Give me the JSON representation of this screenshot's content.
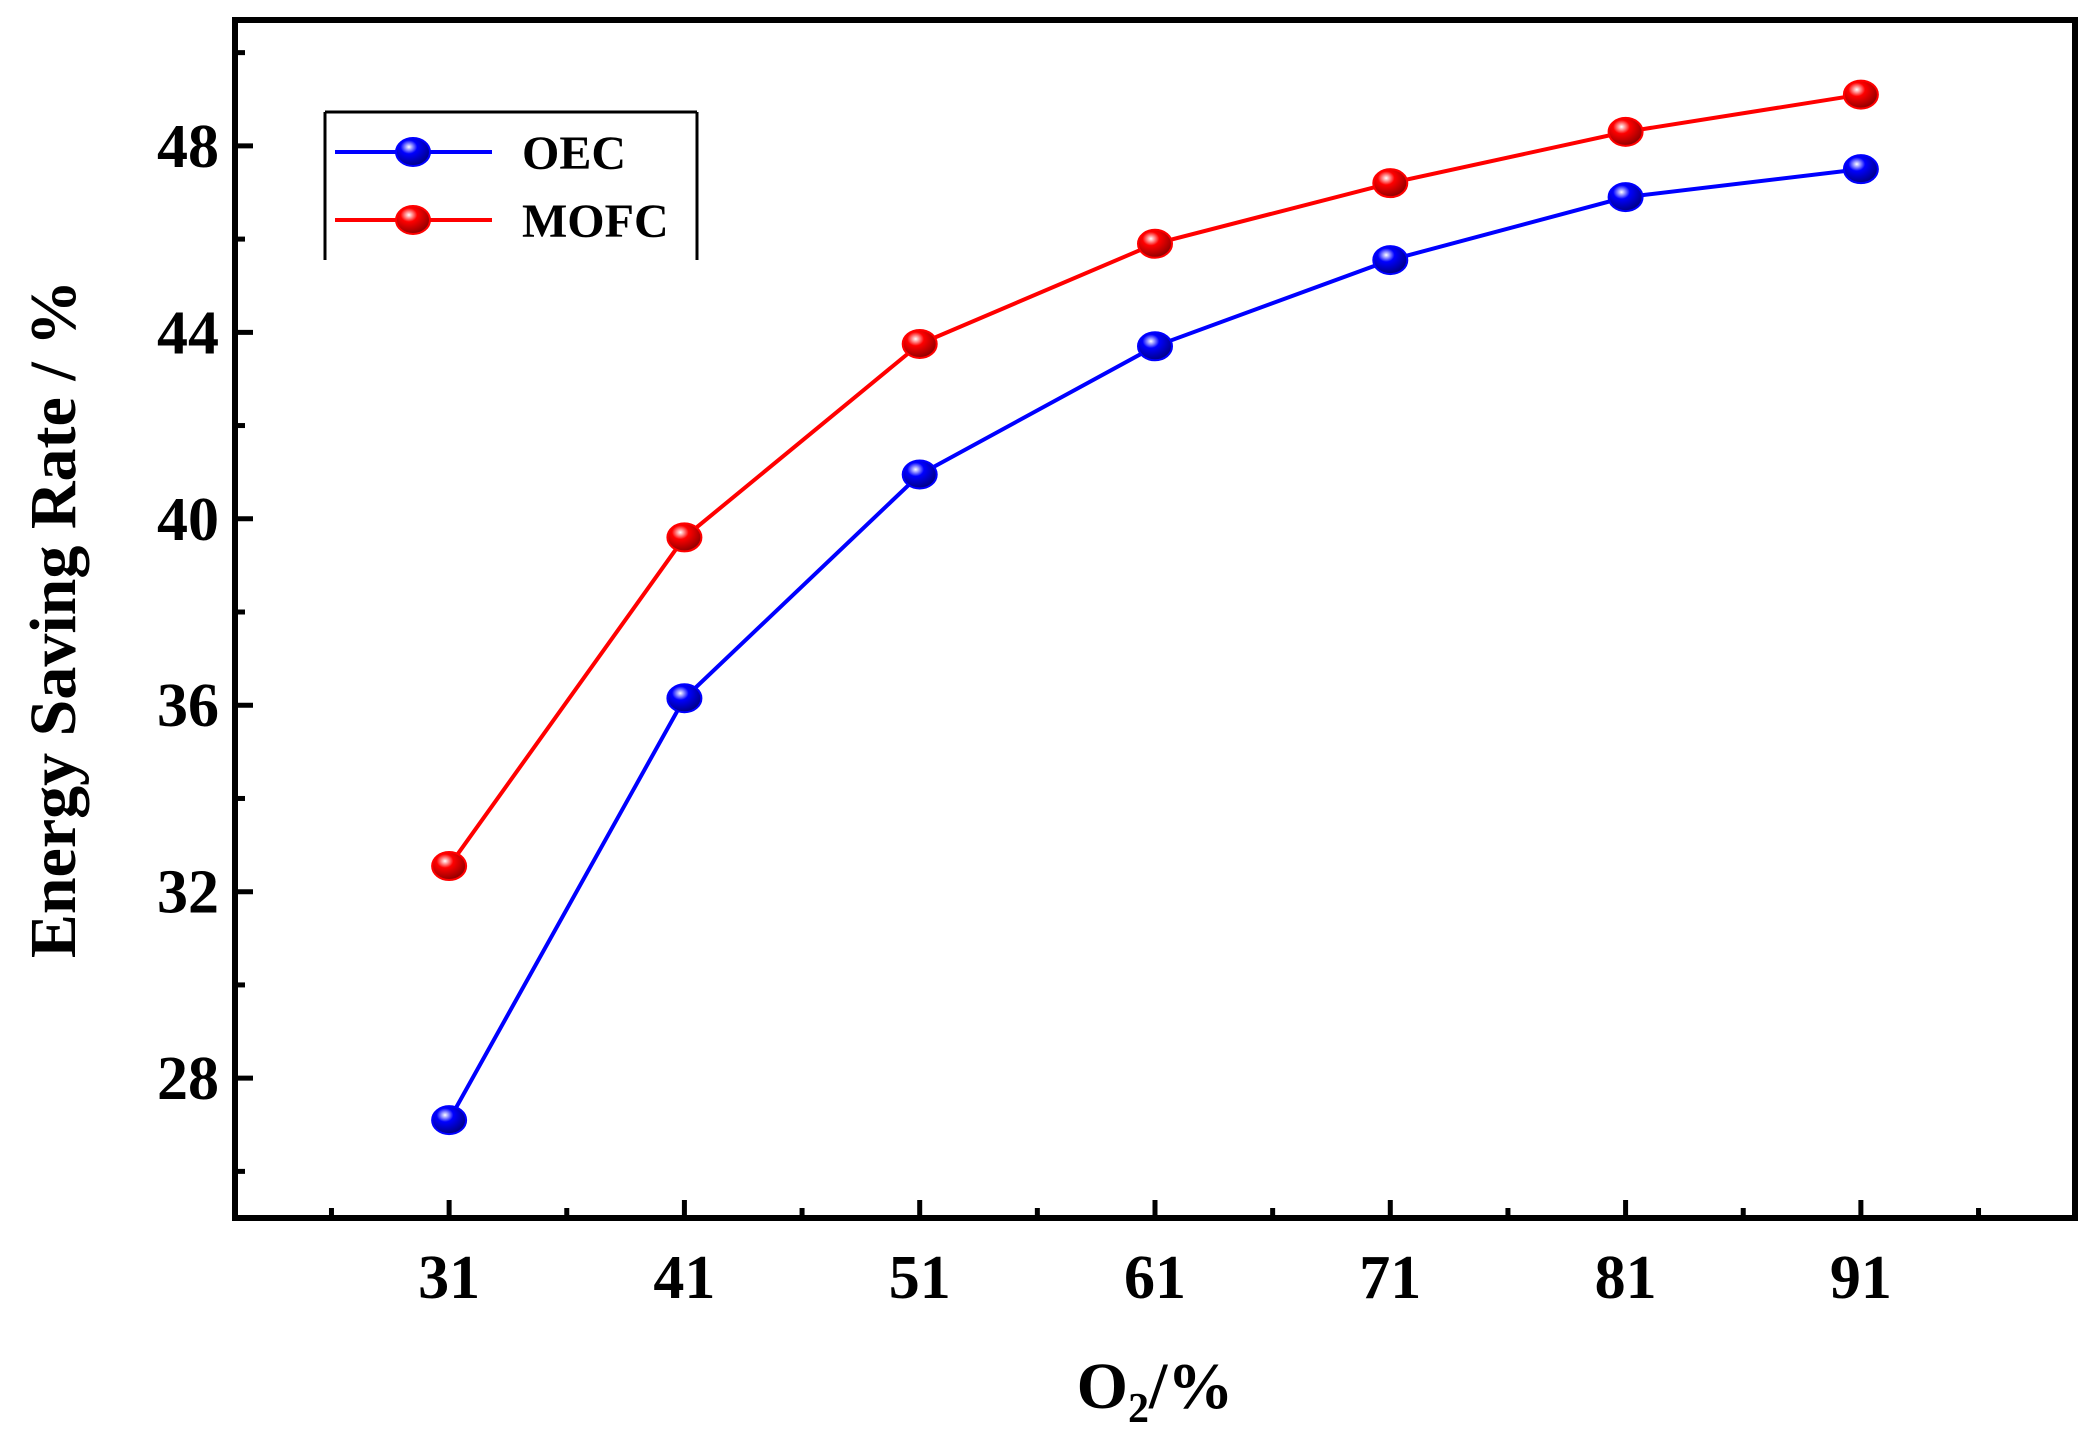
{
  "chart_data": {
    "type": "line",
    "title": "",
    "xlabel": {
      "main": "O",
      "sub": "2",
      "suffix": "/%"
    },
    "ylabel": "Energy Saving Rate / %",
    "categories": [
      "31",
      "41",
      "51",
      "61",
      "71",
      "81",
      "91"
    ],
    "x": [
      31,
      41,
      51,
      61,
      71,
      81,
      91
    ],
    "xlim": [
      21.9,
      100.1
    ],
    "ylim": [
      25.0,
      50.7
    ],
    "yticks": [
      28,
      32,
      36,
      40,
      44,
      48
    ],
    "ytick_labels": [
      "28",
      "32",
      "36",
      "40",
      "44",
      "48"
    ],
    "series": [
      {
        "name": "OEC",
        "color": "#0000ff",
        "values": [
          27.1,
          36.15,
          40.95,
          43.7,
          45.55,
          46.9,
          47.5
        ]
      },
      {
        "name": "MOFC",
        "color": "#ff0000",
        "values": [
          32.55,
          39.6,
          43.75,
          45.9,
          47.2,
          48.3,
          49.1
        ]
      }
    ],
    "legend": {
      "position": "top-left",
      "entries": [
        "OEC",
        "MOFC"
      ]
    },
    "grid": false
  }
}
